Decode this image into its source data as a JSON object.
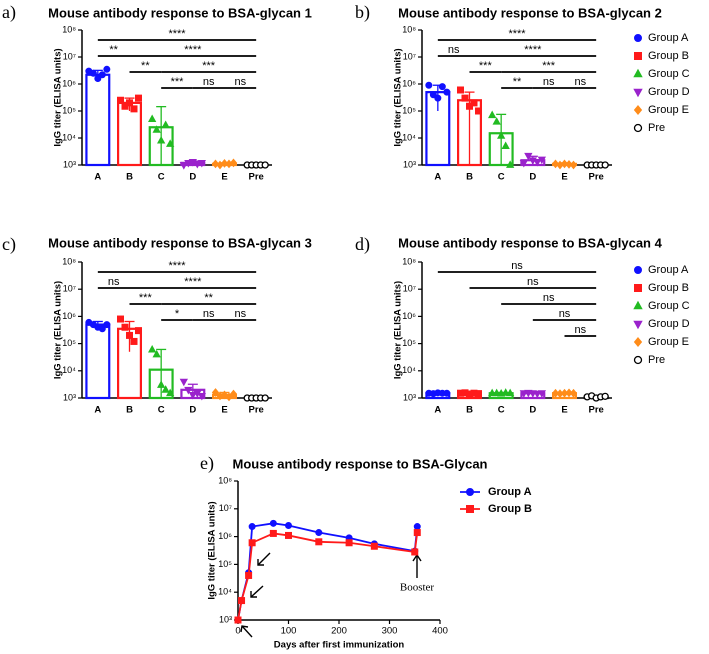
{
  "chart_data": [
    {
      "type": "bar",
      "label": "a)",
      "title": "Mouse antibody response to BSA-glycan 1",
      "ylabel": "IgG titer (ELISA units)",
      "log_y": true,
      "ylim": [
        1000,
        100000000
      ],
      "yticks": [
        {
          "value": 1000,
          "label": "10³"
        },
        {
          "value": 10000,
          "label": "10⁴"
        },
        {
          "value": 100000,
          "label": "10⁵"
        },
        {
          "value": 1000000,
          "label": "10⁶"
        },
        {
          "value": 10000000,
          "label": "10⁷"
        },
        {
          "value": 100000000,
          "label": "10⁸"
        }
      ],
      "categories": [
        "A",
        "B",
        "C",
        "D",
        "E",
        "Pre"
      ],
      "colors": [
        "#1010ff",
        "#ff1a1a",
        "#22bb22",
        "#9a22cc",
        "#ff8c1a",
        "#000000"
      ],
      "markers": [
        "circle",
        "square",
        "triangle",
        "triangle-down",
        "diamond",
        "open-circle"
      ],
      "values": [
        2200000,
        200000,
        25000,
        1200,
        1100,
        1000
      ],
      "errors": [
        1000000,
        100000,
        120000,
        200,
        100,
        0
      ],
      "points": [
        [
          3000000,
          2500000,
          1600000,
          2200000,
          3500000
        ],
        [
          250000,
          150000,
          200000,
          120000,
          300000
        ],
        [
          50000,
          20000,
          8000,
          30000,
          6000
        ],
        [
          1000,
          1200,
          1300,
          1100,
          1200
        ],
        [
          1100,
          1000,
          1150,
          1100,
          1200
        ],
        [
          1000,
          1000,
          1000,
          1000,
          1000
        ]
      ],
      "brackets": [
        [
          {
            "label": "****",
            "from": "A",
            "to": "Pre"
          }
        ],
        [
          {
            "label": "**",
            "from": "A",
            "to": "B"
          },
          {
            "label": "****",
            "from": "B",
            "to": "Pre"
          }
        ],
        [
          {
            "label": "**",
            "from": "B",
            "to": "C"
          },
          {
            "label": "***",
            "from": "C",
            "to": "Pre"
          }
        ],
        [
          {
            "label": "***",
            "from": "C",
            "to": "D"
          },
          {
            "label": "ns",
            "from": "D",
            "to": "E"
          },
          {
            "label": "ns",
            "from": "E",
            "to": "Pre"
          }
        ]
      ]
    },
    {
      "type": "bar",
      "label": "b)",
      "title": "Mouse antibody response to BSA-glycan 2",
      "ylabel": "IgG titer (ELISA units)",
      "log_y": true,
      "ylim": [
        1000,
        100000000
      ],
      "yticks": [
        {
          "value": 1000,
          "label": "10³"
        },
        {
          "value": 10000,
          "label": "10⁴"
        },
        {
          "value": 100000,
          "label": "10⁵"
        },
        {
          "value": 1000000,
          "label": "10⁶"
        },
        {
          "value": 10000000,
          "label": "10⁷"
        },
        {
          "value": 100000000,
          "label": "10⁸"
        }
      ],
      "categories": [
        "A",
        "B",
        "C",
        "D",
        "E",
        "Pre"
      ],
      "colors": [
        "#1010ff",
        "#ff1a1a",
        "#22bb22",
        "#9a22cc",
        "#ff8c1a",
        "#000000"
      ],
      "markers": [
        "circle",
        "square",
        "triangle",
        "triangle-down",
        "diamond",
        "open-circle"
      ],
      "legend": [
        "Group A",
        "Group B",
        "Group C",
        "Group D",
        "Group E",
        "Pre"
      ],
      "values": [
        500000,
        250000,
        15000,
        1500,
        1100,
        1000
      ],
      "errors": [
        400000,
        250000,
        60000,
        600,
        100,
        0
      ],
      "points": [
        [
          900000,
          400000,
          300000,
          800000,
          500000
        ],
        [
          600000,
          300000,
          150000,
          200000,
          100000
        ],
        [
          70000,
          40000,
          12000,
          5000,
          1000
        ],
        [
          1200,
          2200,
          1500,
          1300,
          1600
        ],
        [
          1100,
          1000,
          1100,
          1050,
          1000
        ],
        [
          1000,
          1000,
          1000,
          1000,
          1000
        ]
      ],
      "brackets": [
        [
          {
            "label": "****",
            "from": "A",
            "to": "Pre"
          }
        ],
        [
          {
            "label": "ns",
            "from": "A",
            "to": "B"
          },
          {
            "label": "****",
            "from": "B",
            "to": "Pre"
          }
        ],
        [
          {
            "label": "***",
            "from": "B",
            "to": "C"
          },
          {
            "label": "***",
            "from": "C",
            "to": "Pre"
          }
        ],
        [
          {
            "label": "**",
            "from": "C",
            "to": "D"
          },
          {
            "label": "ns",
            "from": "D",
            "to": "E"
          },
          {
            "label": "ns",
            "from": "E",
            "to": "Pre"
          }
        ]
      ]
    },
    {
      "type": "bar",
      "label": "c)",
      "title": "Mouse antibody response to BSA-glycan 3",
      "ylabel": "IgG titer (ELISA units)",
      "log_y": true,
      "ylim": [
        1000,
        100000000
      ],
      "yticks": [
        {
          "value": 1000,
          "label": "10³"
        },
        {
          "value": 10000,
          "label": "10⁴"
        },
        {
          "value": 100000,
          "label": "10⁵"
        },
        {
          "value": 1000000,
          "label": "10⁶"
        },
        {
          "value": 10000000,
          "label": "10⁷"
        },
        {
          "value": 100000000,
          "label": "10⁸"
        }
      ],
      "categories": [
        "A",
        "B",
        "C",
        "D",
        "E",
        "Pre"
      ],
      "colors": [
        "#1010ff",
        "#ff1a1a",
        "#22bb22",
        "#9a22cc",
        "#ff8c1a",
        "#000000"
      ],
      "markers": [
        "circle",
        "square",
        "triangle",
        "triangle-down",
        "diamond",
        "open-circle"
      ],
      "values": [
        500000,
        350000,
        11000,
        2000,
        1300,
        1000
      ],
      "errors": [
        150000,
        300000,
        50000,
        1200,
        300,
        0
      ],
      "points": [
        [
          600000,
          500000,
          400000,
          350000,
          500000
        ],
        [
          800000,
          400000,
          200000,
          120000,
          300000
        ],
        [
          60000,
          40000,
          3000,
          2000,
          1500
        ],
        [
          4000,
          2000,
          1300,
          1500,
          1200
        ],
        [
          1600,
          1200,
          1300,
          1100,
          1400
        ],
        [
          1000,
          1000,
          1000,
          1000,
          1000
        ]
      ],
      "brackets": [
        [
          {
            "label": "****",
            "from": "A",
            "to": "Pre"
          }
        ],
        [
          {
            "label": "ns",
            "from": "A",
            "to": "B"
          },
          {
            "label": "****",
            "from": "B",
            "to": "Pre"
          }
        ],
        [
          {
            "label": "***",
            "from": "B",
            "to": "C"
          },
          {
            "label": "**",
            "from": "C",
            "to": "Pre"
          }
        ],
        [
          {
            "label": "*",
            "from": "C",
            "to": "D"
          },
          {
            "label": "ns",
            "from": "D",
            "to": "E"
          },
          {
            "label": "ns",
            "from": "E",
            "to": "Pre"
          }
        ]
      ]
    },
    {
      "type": "bar",
      "label": "d)",
      "title": "Mouse antibody response to BSA-glycan 4",
      "ylabel": "IgG titer (ELISA units)",
      "log_y": true,
      "ylim": [
        1000,
        100000000
      ],
      "yticks": [
        {
          "value": 1000,
          "label": "10³"
        },
        {
          "value": 10000,
          "label": "10⁴"
        },
        {
          "value": 100000,
          "label": "10⁵"
        },
        {
          "value": 1000000,
          "label": "10⁶"
        },
        {
          "value": 10000000,
          "label": "10⁷"
        },
        {
          "value": 100000000,
          "label": "10⁸"
        }
      ],
      "categories": [
        "A",
        "B",
        "C",
        "D",
        "E",
        "Pre"
      ],
      "colors": [
        "#1010ff",
        "#ff1a1a",
        "#22bb22",
        "#9a22cc",
        "#ff8c1a",
        "#000000"
      ],
      "markers": [
        "circle",
        "square",
        "triangle",
        "triangle-down",
        "diamond",
        "open-circle"
      ],
      "legend": [
        "Group A",
        "Group B",
        "Group C",
        "Group D",
        "Group E",
        "Pre"
      ],
      "values": [
        1500,
        1500,
        1500,
        1500,
        1500,
        1100
      ],
      "errors": [
        100,
        100,
        100,
        100,
        100,
        100
      ],
      "points": [
        [
          1500,
          1450,
          1550,
          1500,
          1500
        ],
        [
          1500,
          1550,
          1400,
          1500,
          1450
        ],
        [
          1500,
          1500,
          1450,
          1550,
          1500
        ],
        [
          1500,
          1550,
          1500,
          1450,
          1500
        ],
        [
          1500,
          1450,
          1500,
          1550,
          1500
        ],
        [
          1100,
          1200,
          1000,
          1100,
          1150
        ]
      ],
      "brackets": [
        [
          {
            "label": "ns",
            "from": "A",
            "to": "Pre"
          }
        ],
        [
          {
            "label": "ns",
            "from": "B",
            "to": "Pre"
          }
        ],
        [
          {
            "label": "ns",
            "from": "C",
            "to": "Pre"
          }
        ],
        [
          {
            "label": "ns",
            "from": "D",
            "to": "Pre"
          }
        ],
        [
          {
            "label": "ns",
            "from": "E",
            "to": "Pre"
          }
        ]
      ]
    },
    {
      "type": "line",
      "label": "e)",
      "title": "Mouse antibody response to BSA-Glycan",
      "ylabel": "IgG titer (ELISA units)",
      "xlabel": "Days after first immunization",
      "log_y": true,
      "xlim": [
        0,
        400
      ],
      "xticks": [
        0,
        100,
        200,
        300,
        400
      ],
      "ylim": [
        1000,
        100000000
      ],
      "yticks": [
        {
          "value": 1000,
          "label": "10³"
        },
        {
          "value": 10000,
          "label": "10⁴"
        },
        {
          "value": 100000,
          "label": "10⁵"
        },
        {
          "value": 1000000,
          "label": "10⁶"
        },
        {
          "value": 10000000,
          "label": "10⁷"
        },
        {
          "value": 100000000,
          "label": "10⁸"
        }
      ],
      "x": [
        0,
        7,
        21,
        28,
        70,
        100,
        160,
        220,
        270,
        350,
        355
      ],
      "series": [
        {
          "name": "Group A",
          "color": "#1010ff",
          "marker": "circle",
          "values": [
            1000,
            5000,
            50000,
            2300000,
            3000000,
            2500000,
            1400000,
            900000,
            550000,
            300000,
            2300000
          ]
        },
        {
          "name": "Group B",
          "color": "#ff1a1a",
          "marker": "square",
          "values": [
            1000,
            5000,
            40000,
            600000,
            1300000,
            1100000,
            650000,
            600000,
            450000,
            280000,
            1400000
          ]
        }
      ],
      "annotations": [
        "Booster"
      ]
    }
  ]
}
